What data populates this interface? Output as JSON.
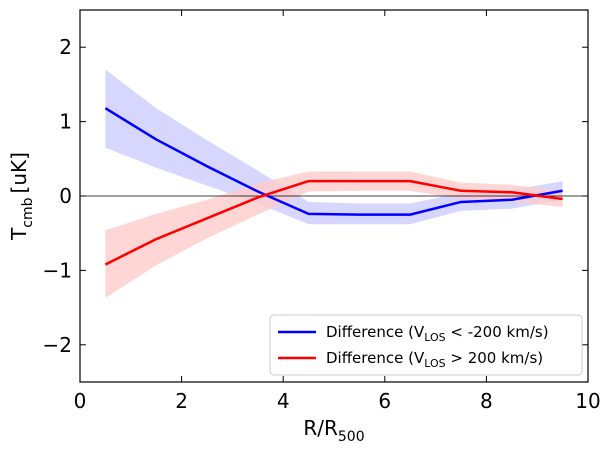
{
  "chart_data": {
    "type": "line",
    "title": "",
    "xlabel": {
      "main": "R/R",
      "sub": "500"
    },
    "ylabel": {
      "main": "T",
      "sub": "cmb",
      "unit": "[uK]"
    },
    "xlim": [
      0,
      10
    ],
    "ylim": [
      -2.5,
      2.5
    ],
    "xticks": [
      0,
      2,
      4,
      6,
      8,
      10
    ],
    "yticks": [
      -2,
      -1,
      0,
      1,
      2
    ],
    "ytick_labels": [
      "−2",
      "−1",
      "0",
      "1",
      "2"
    ],
    "xtick_labels": [
      "0",
      "2",
      "4",
      "6",
      "8",
      "10"
    ],
    "zero_line": true,
    "legend_position": "lower-right",
    "x": [
      0.5,
      1.5,
      2.5,
      3.5,
      4.5,
      5.5,
      6.5,
      7.5,
      8.5,
      9.5
    ],
    "series": [
      {
        "name": "Difference (V_LOS < -200 km/s)",
        "label_parts": {
          "pre": "Difference (V",
          "sub": "LOS",
          "post": " < -200 km/s)"
        },
        "color": "#0000ff",
        "band_color": "#ccccff",
        "values": [
          1.18,
          0.76,
          0.4,
          0.06,
          -0.24,
          -0.25,
          -0.25,
          -0.08,
          -0.05,
          0.07
        ],
        "lower": [
          0.65,
          0.38,
          0.14,
          -0.1,
          -0.38,
          -0.38,
          -0.38,
          -0.2,
          -0.17,
          -0.05
        ],
        "upper": [
          1.7,
          1.18,
          0.75,
          0.34,
          -0.08,
          -0.1,
          -0.1,
          0.04,
          0.08,
          0.2
        ]
      },
      {
        "name": "Difference (V_LOS > 200 km/s)",
        "label_parts": {
          "pre": "Difference (V",
          "sub": "LOS",
          "post": " > 200 km/s)"
        },
        "color": "#ff0000",
        "band_color": "#ffcccc",
        "values": [
          -0.92,
          -0.58,
          -0.3,
          -0.02,
          0.2,
          0.2,
          0.2,
          0.07,
          0.05,
          -0.04
        ],
        "lower": [
          -1.37,
          -0.93,
          -0.57,
          -0.25,
          0.06,
          0.07,
          0.07,
          -0.04,
          -0.07,
          -0.15
        ],
        "upper": [
          -0.46,
          -0.24,
          -0.05,
          0.17,
          0.33,
          0.33,
          0.33,
          0.18,
          0.15,
          0.07
        ]
      }
    ]
  }
}
